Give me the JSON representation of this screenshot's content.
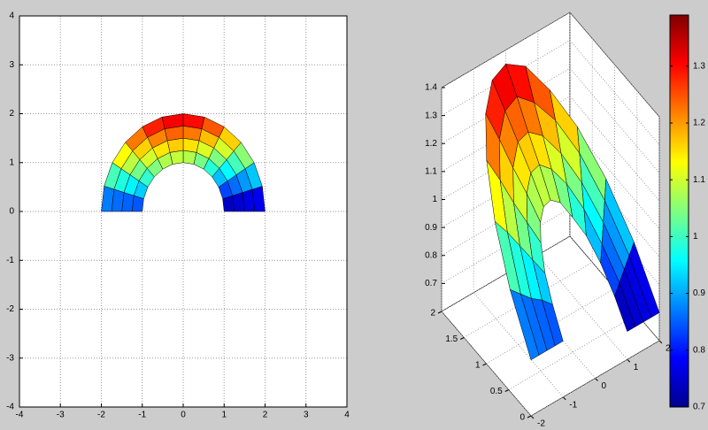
{
  "chart_data": [
    {
      "type": "pcolor",
      "xlim": [
        -4,
        4
      ],
      "ylim": [
        -4,
        4
      ],
      "xticks": [
        -4,
        -3,
        -2,
        -1,
        0,
        1,
        2,
        3,
        4
      ],
      "yticks": [
        -4,
        -3,
        -2,
        -1,
        0,
        1,
        2,
        3,
        4
      ],
      "grid": true
    },
    {
      "type": "surf",
      "xlim": [
        -2,
        2
      ],
      "ylim": [
        0,
        2
      ],
      "zlim": [
        0.6,
        1.4
      ],
      "xticks": [
        -2,
        -1,
        0,
        1,
        2
      ],
      "yticks": [
        0,
        0.5,
        1,
        1.5,
        2
      ],
      "zticks": [
        0.7,
        0.8,
        0.9,
        1,
        1.1,
        1.2,
        1.3,
        1.4
      ],
      "grid": true,
      "colorbar": {
        "clim": [
          0.7,
          1.39
        ],
        "ticks": [
          0.7,
          0.8,
          0.9,
          1,
          1.1,
          1.2,
          1.3
        ]
      }
    }
  ],
  "surface": {
    "r": [
      1,
      1.25,
      1.5,
      1.75,
      2
    ],
    "theta": [
      0,
      15,
      30,
      45,
      60,
      75,
      90,
      105,
      120,
      135,
      150,
      165,
      180
    ],
    "z": [
      [
        0.7,
        0.78,
        0.86,
        0.93,
        0.98,
        1.03,
        1.05,
        1.05,
        1.03,
        1.0,
        0.94,
        0.88,
        0.8
      ],
      [
        0.7,
        0.8,
        0.89,
        0.98,
        1.05,
        1.1,
        1.13,
        1.13,
        1.1,
        1.05,
        0.98,
        0.9,
        0.8
      ],
      [
        0.7,
        0.82,
        0.93,
        1.03,
        1.11,
        1.17,
        1.2,
        1.2,
        1.16,
        1.1,
        1.02,
        0.91,
        0.8
      ],
      [
        0.7,
        0.84,
        0.97,
        1.09,
        1.18,
        1.24,
        1.28,
        1.27,
        1.23,
        1.16,
        1.06,
        0.93,
        0.8
      ],
      [
        0.7,
        0.86,
        1.01,
        1.14,
        1.24,
        1.32,
        1.35,
        1.34,
        1.29,
        1.21,
        1.09,
        0.95,
        0.8
      ]
    ]
  }
}
